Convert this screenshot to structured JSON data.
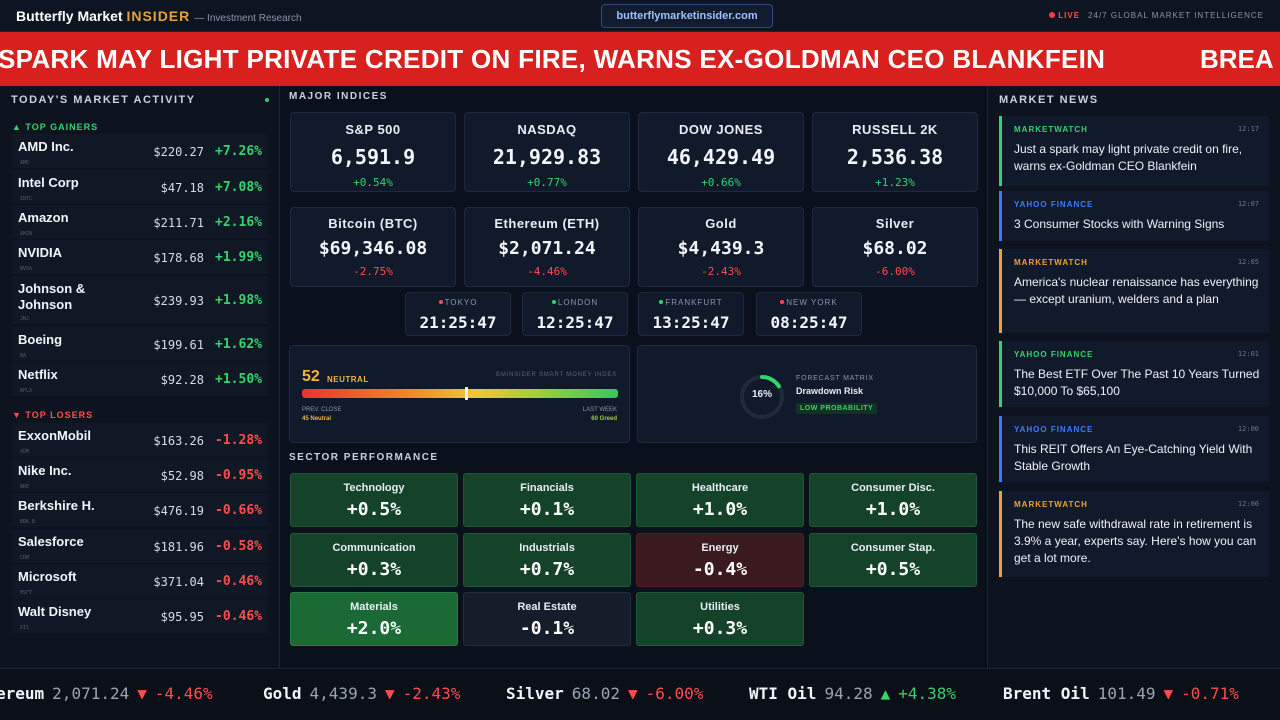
{
  "header": {
    "brand_main": "Butterfly Market ",
    "brand_accent": "INSIDER",
    "brand_sub": "— Investment Research",
    "url": "butterflymarketinsider.com",
    "live_label": "LIVE",
    "live_tagline": "24/7 GLOBAL MARKET INTELLIGENCE"
  },
  "banner": {
    "headline": "SPARK MAY LIGHT PRIVATE CREDIT ON FIRE, WARNS EX-GOLDMAN CEO BLANKFEIN",
    "next": "BREA"
  },
  "market_activity": {
    "title": "TODAY'S MARKET ACTIVITY",
    "gainers_label": "▲ TOP GAINERS",
    "losers_label": "▼ TOP LOSERS",
    "gainers": [
      {
        "name": "AMD Inc.",
        "ticker": "AMD",
        "price": "$220.27",
        "change": "+7.26%"
      },
      {
        "name": "Intel Corp",
        "ticker": "INTC",
        "price": "$47.18",
        "change": "+7.08%"
      },
      {
        "name": "Amazon",
        "ticker": "AMZN",
        "price": "$211.71",
        "change": "+2.16%"
      },
      {
        "name": "NVIDIA",
        "ticker": "NVDA",
        "price": "$178.68",
        "change": "+1.99%"
      },
      {
        "name": "Johnson & Johnson",
        "ticker": "JNJ",
        "price": "$239.93",
        "change": "+1.98%"
      },
      {
        "name": "Boeing",
        "ticker": "BA",
        "price": "$199.61",
        "change": "+1.62%"
      },
      {
        "name": "Netflix",
        "ticker": "NFLX",
        "price": "$92.28",
        "change": "+1.50%"
      }
    ],
    "losers": [
      {
        "name": "ExxonMobil",
        "ticker": "XOM",
        "price": "$163.26",
        "change": "-1.28%"
      },
      {
        "name": "Nike Inc.",
        "ticker": "NKE",
        "price": "$52.98",
        "change": "-0.95%"
      },
      {
        "name": "Berkshire H.",
        "ticker": "BRK.B",
        "price": "$476.19",
        "change": "-0.66%"
      },
      {
        "name": "Salesforce",
        "ticker": "CRM",
        "price": "$181.96",
        "change": "-0.58%"
      },
      {
        "name": "Microsoft",
        "ticker": "MSFT",
        "price": "$371.04",
        "change": "-0.46%"
      },
      {
        "name": "Walt Disney",
        "ticker": "DIS",
        "price": "$95.95",
        "change": "-0.46%"
      }
    ]
  },
  "indices": {
    "title": "MAJOR INDICES",
    "cards": [
      {
        "name": "S&P 500",
        "value": "6,591.9",
        "change": "+0.54%"
      },
      {
        "name": "NASDAQ",
        "value": "21,929.83",
        "change": "+0.77%"
      },
      {
        "name": "DOW JONES",
        "value": "46,429.49",
        "change": "+0.66%"
      },
      {
        "name": "RUSSELL 2K",
        "value": "2,536.38",
        "change": "+1.23%"
      },
      {
        "name": "Bitcoin (BTC)",
        "value": "$69,346.08",
        "change": "-2.75%"
      },
      {
        "name": "Ethereum (ETH)",
        "value": "$2,071.24",
        "change": "-4.46%"
      },
      {
        "name": "Gold",
        "value": "$4,439.3",
        "change": "-2.43%"
      },
      {
        "name": "Silver",
        "value": "$68.02",
        "change": "-6.00%"
      }
    ]
  },
  "clocks": [
    {
      "city": "TOKYO",
      "time": "21:25:47",
      "dot": "#ff4d4d"
    },
    {
      "city": "LONDON",
      "time": "12:25:47",
      "dot": "#35d46e"
    },
    {
      "city": "FRANKFURT",
      "time": "13:25:47",
      "dot": "#35d46e"
    },
    {
      "city": "NEW YORK",
      "time": "08:25:47",
      "dot": "#ff4d4d"
    }
  ],
  "sentiment": {
    "score": "52",
    "label": "NEUTRAL",
    "index_name": "BMINSIDER SMART MONEY INDEX",
    "level": 0.52,
    "prev_label": "PREV. CLOSE",
    "prev_value": "45",
    "prev_word": "Neutral",
    "last_label": "LAST WEEK",
    "last_value": "60",
    "last_word": "Greed"
  },
  "forecast": {
    "percent": "16%",
    "level": 0.16,
    "matrix_label": "FORECAST MATRIX",
    "risk": "Drawdown Risk",
    "probability": "LOW PROBABILITY"
  },
  "sectors": {
    "title": "SECTOR PERFORMANCE",
    "items": [
      {
        "name": "Technology",
        "value": "+0.5%"
      },
      {
        "name": "Financials",
        "value": "+0.1%"
      },
      {
        "name": "Healthcare",
        "value": "+1.0%"
      },
      {
        "name": "Consumer Disc.",
        "value": "+1.0%"
      },
      {
        "name": "Communication",
        "value": "+0.3%"
      },
      {
        "name": "Industrials",
        "value": "+0.7%"
      },
      {
        "name": "Energy",
        "value": "-0.4%"
      },
      {
        "name": "Consumer Stap.",
        "value": "+0.5%"
      },
      {
        "name": "Materials",
        "value": "+2.0%"
      },
      {
        "name": "Real Estate",
        "value": "-0.1%"
      },
      {
        "name": "Utilities",
        "value": "+0.3%"
      }
    ]
  },
  "news": {
    "title": "MARKET NEWS",
    "items": [
      {
        "source": "MARKETWATCH",
        "time": "12:17",
        "headline": "Just a spark may light private credit on fire, warns ex-Goldman CEO Blankfein",
        "color": "#35d46e"
      },
      {
        "source": "YAHOO FINANCE",
        "time": "12:07",
        "headline": "3 Consumer Stocks with Warning Signs",
        "color": "#3b7dff"
      },
      {
        "source": "MARKETWATCH",
        "time": "12:05",
        "headline": "America's nuclear renaissance has everything — except uranium, welders and a plan",
        "color": "#f0a03a"
      },
      {
        "source": "YAHOO FINANCE",
        "time": "12:01",
        "headline": "The Best ETF Over The Past 10 Years Turned $10,000 To $65,100",
        "color": "#35d46e"
      },
      {
        "source": "YAHOO FINANCE",
        "time": "12:00",
        "headline": "This REIT Offers An Eye-Catching Yield With Stable Growth",
        "color": "#3b7dff"
      },
      {
        "source": "MARKETWATCH",
        "time": "12:00",
        "headline": "The new safe withdrawal rate in retirement is 3.9% a year, experts say. Here's how you can get a lot more.",
        "color": "#f0a03a"
      }
    ]
  },
  "ticker": [
    {
      "name": "ereum",
      "price": "2,071.24",
      "arrow": "▼",
      "change": "-4.46%"
    },
    {
      "name": "Gold",
      "price": "4,439.3",
      "arrow": "▼",
      "change": "-2.43%"
    },
    {
      "name": "Silver",
      "price": "68.02",
      "arrow": "▼",
      "change": "-6.00%"
    },
    {
      "name": "WTI Oil",
      "price": "94.28",
      "arrow": "▲",
      "change": "+4.38%"
    },
    {
      "name": "Brent Oil",
      "price": "101.49",
      "arrow": "▼",
      "change": "-0.71%"
    }
  ]
}
